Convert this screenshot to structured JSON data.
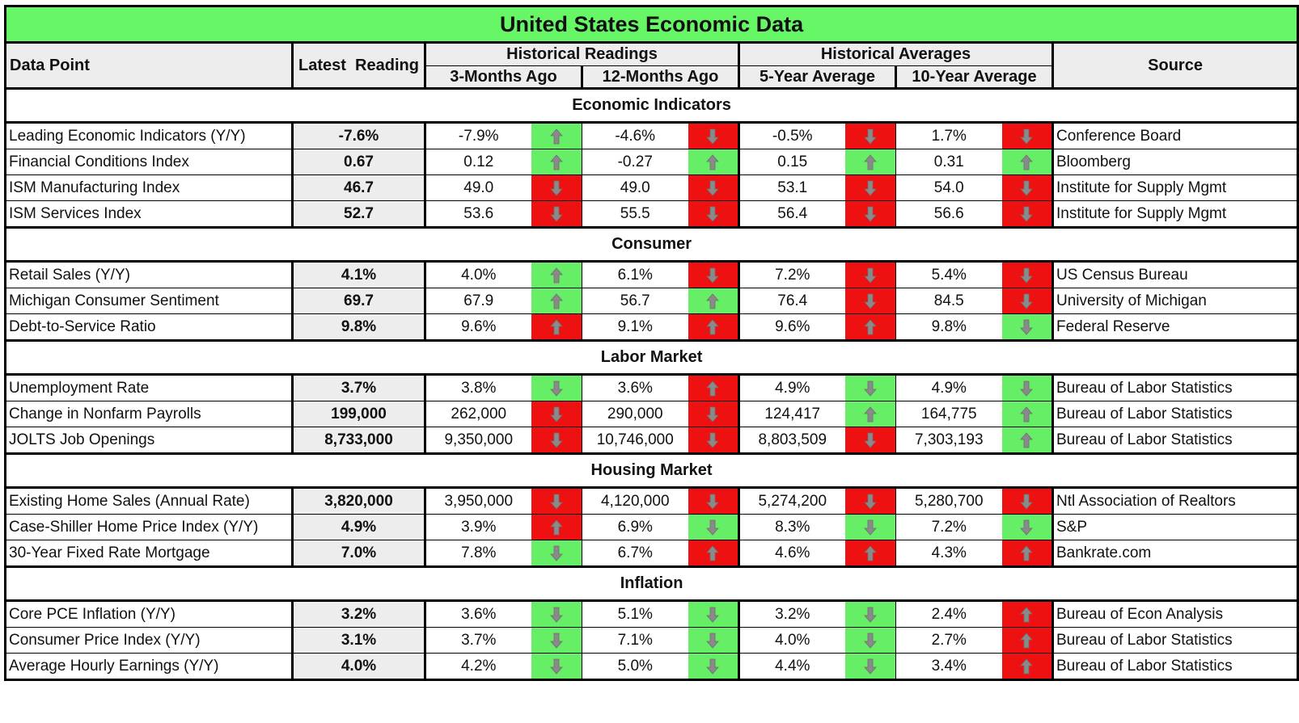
{
  "title": "United States Economic Data",
  "headers": {
    "data_point": "Data Point",
    "latest": "Latest  Reading",
    "historical_readings": "Historical Readings",
    "historical_averages": "Historical Averages",
    "three_months": "3-Months Ago",
    "twelve_months": "12-Months Ago",
    "five_year": "5-Year Average",
    "ten_year": "10-Year Average",
    "source": "Source"
  },
  "colors": {
    "green": "#66ee66",
    "red": "#ee1111",
    "header_green": "#66f666",
    "arrow_gray": "#8a8a8a"
  },
  "sections": [
    {
      "name": "Economic Indicators",
      "rows": [
        {
          "label": "Leading Economic Indicators (Y/Y)",
          "latest": "-7.6%",
          "m3": "-7.9%",
          "m3_dir": "up",
          "m3_color": "green",
          "m12": "-4.6%",
          "m12_dir": "down",
          "m12_color": "red",
          "y5": "-0.5%",
          "y5_dir": "down",
          "y5_color": "red",
          "y10": "1.7%",
          "y10_dir": "down",
          "y10_color": "red",
          "source": "Conference Board"
        },
        {
          "label": "Financial Conditions Index",
          "latest": "0.67",
          "m3": "0.12",
          "m3_dir": "up",
          "m3_color": "green",
          "m12": "-0.27",
          "m12_dir": "up",
          "m12_color": "green",
          "y5": "0.15",
          "y5_dir": "up",
          "y5_color": "green",
          "y10": "0.31",
          "y10_dir": "up",
          "y10_color": "green",
          "source": "Bloomberg"
        },
        {
          "label": "ISM Manufacturing Index",
          "latest": "46.7",
          "m3": "49.0",
          "m3_dir": "down",
          "m3_color": "red",
          "m12": "49.0",
          "m12_dir": "down",
          "m12_color": "red",
          "y5": "53.1",
          "y5_dir": "down",
          "y5_color": "red",
          "y10": "54.0",
          "y10_dir": "down",
          "y10_color": "red",
          "source": "Institute for Supply Mgmt"
        },
        {
          "label": "ISM Services Index",
          "latest": "52.7",
          "m3": "53.6",
          "m3_dir": "down",
          "m3_color": "red",
          "m12": "55.5",
          "m12_dir": "down",
          "m12_color": "red",
          "y5": "56.4",
          "y5_dir": "down",
          "y5_color": "red",
          "y10": "56.6",
          "y10_dir": "down",
          "y10_color": "red",
          "source": "Institute for Supply Mgmt"
        }
      ]
    },
    {
      "name": "Consumer",
      "rows": [
        {
          "label": "Retail Sales (Y/Y)",
          "latest": "4.1%",
          "m3": "4.0%",
          "m3_dir": "up",
          "m3_color": "green",
          "m12": "6.1%",
          "m12_dir": "down",
          "m12_color": "red",
          "y5": "7.2%",
          "y5_dir": "down",
          "y5_color": "red",
          "y10": "5.4%",
          "y10_dir": "down",
          "y10_color": "red",
          "source": "US Census Bureau"
        },
        {
          "label": "Michigan Consumer Sentiment",
          "latest": "69.7",
          "m3": "67.9",
          "m3_dir": "up",
          "m3_color": "green",
          "m12": "56.7",
          "m12_dir": "up",
          "m12_color": "green",
          "y5": "76.4",
          "y5_dir": "down",
          "y5_color": "red",
          "y10": "84.5",
          "y10_dir": "down",
          "y10_color": "red",
          "source": "University of Michigan"
        },
        {
          "label": "Debt-to-Service Ratio",
          "latest": "9.8%",
          "m3": "9.6%",
          "m3_dir": "up",
          "m3_color": "red",
          "m12": "9.1%",
          "m12_dir": "up",
          "m12_color": "red",
          "y5": "9.6%",
          "y5_dir": "up",
          "y5_color": "red",
          "y10": "9.8%",
          "y10_dir": "down",
          "y10_color": "green",
          "source": "Federal Reserve"
        }
      ]
    },
    {
      "name": "Labor Market",
      "rows": [
        {
          "label": "Unemployment Rate",
          "latest": "3.7%",
          "m3": "3.8%",
          "m3_dir": "down",
          "m3_color": "green",
          "m12": "3.6%",
          "m12_dir": "up",
          "m12_color": "red",
          "y5": "4.9%",
          "y5_dir": "down",
          "y5_color": "green",
          "y10": "4.9%",
          "y10_dir": "down",
          "y10_color": "green",
          "source": "Bureau of Labor Statistics"
        },
        {
          "label": "Change in Nonfarm Payrolls",
          "latest": "199,000",
          "m3": "262,000",
          "m3_dir": "down",
          "m3_color": "red",
          "m12": "290,000",
          "m12_dir": "down",
          "m12_color": "red",
          "y5": "124,417",
          "y5_dir": "up",
          "y5_color": "green",
          "y10": "164,775",
          "y10_dir": "up",
          "y10_color": "green",
          "source": "Bureau of Labor Statistics"
        },
        {
          "label": "JOLTS Job Openings",
          "latest": "8,733,000",
          "m3": "9,350,000",
          "m3_dir": "down",
          "m3_color": "red",
          "m12": "10,746,000",
          "m12_dir": "down",
          "m12_color": "red",
          "y5": "8,803,509",
          "y5_dir": "down",
          "y5_color": "red",
          "y10": "7,303,193",
          "y10_dir": "up",
          "y10_color": "green",
          "source": "Bureau of Labor Statistics"
        }
      ]
    },
    {
      "name": "Housing Market",
      "rows": [
        {
          "label": "Existing Home Sales (Annual Rate)",
          "latest": "3,820,000",
          "m3": "3,950,000",
          "m3_dir": "down",
          "m3_color": "red",
          "m12": "4,120,000",
          "m12_dir": "down",
          "m12_color": "red",
          "y5": "5,274,200",
          "y5_dir": "down",
          "y5_color": "red",
          "y10": "5,280,700",
          "y10_dir": "down",
          "y10_color": "red",
          "source": "Ntl Association of Realtors"
        },
        {
          "label": "Case-Shiller Home Price Index (Y/Y)",
          "latest": "4.9%",
          "m3": "3.9%",
          "m3_dir": "up",
          "m3_color": "red",
          "m12": "6.9%",
          "m12_dir": "down",
          "m12_color": "green",
          "y5": "8.3%",
          "y5_dir": "down",
          "y5_color": "green",
          "y10": "7.2%",
          "y10_dir": "down",
          "y10_color": "green",
          "source": "S&P"
        },
        {
          "label": "30-Year Fixed Rate Mortgage",
          "latest": "7.0%",
          "m3": "7.8%",
          "m3_dir": "down",
          "m3_color": "green",
          "m12": "6.7%",
          "m12_dir": "up",
          "m12_color": "red",
          "y5": "4.6%",
          "y5_dir": "up",
          "y5_color": "red",
          "y10": "4.3%",
          "y10_dir": "up",
          "y10_color": "red",
          "source": "Bankrate.com"
        }
      ]
    },
    {
      "name": "Inflation",
      "rows": [
        {
          "label": "Core PCE Inflation (Y/Y)",
          "latest": "3.2%",
          "m3": "3.6%",
          "m3_dir": "down",
          "m3_color": "green",
          "m12": "5.1%",
          "m12_dir": "down",
          "m12_color": "green",
          "y5": "3.2%",
          "y5_dir": "down",
          "y5_color": "green",
          "y10": "2.4%",
          "y10_dir": "up",
          "y10_color": "red",
          "source": "Bureau of Econ Analysis"
        },
        {
          "label": "Consumer Price Index (Y/Y)",
          "latest": "3.1%",
          "m3": "3.7%",
          "m3_dir": "down",
          "m3_color": "green",
          "m12": "7.1%",
          "m12_dir": "down",
          "m12_color": "green",
          "y5": "4.0%",
          "y5_dir": "down",
          "y5_color": "green",
          "y10": "2.7%",
          "y10_dir": "up",
          "y10_color": "red",
          "source": "Bureau of Labor Statistics"
        },
        {
          "label": "Average Hourly Earnings (Y/Y)",
          "latest": "4.0%",
          "m3": "4.2%",
          "m3_dir": "down",
          "m3_color": "green",
          "m12": "5.0%",
          "m12_dir": "down",
          "m12_color": "green",
          "y5": "4.4%",
          "y5_dir": "down",
          "y5_color": "green",
          "y10": "3.4%",
          "y10_dir": "up",
          "y10_color": "red",
          "source": "Bureau of Labor Statistics"
        }
      ]
    }
  ]
}
